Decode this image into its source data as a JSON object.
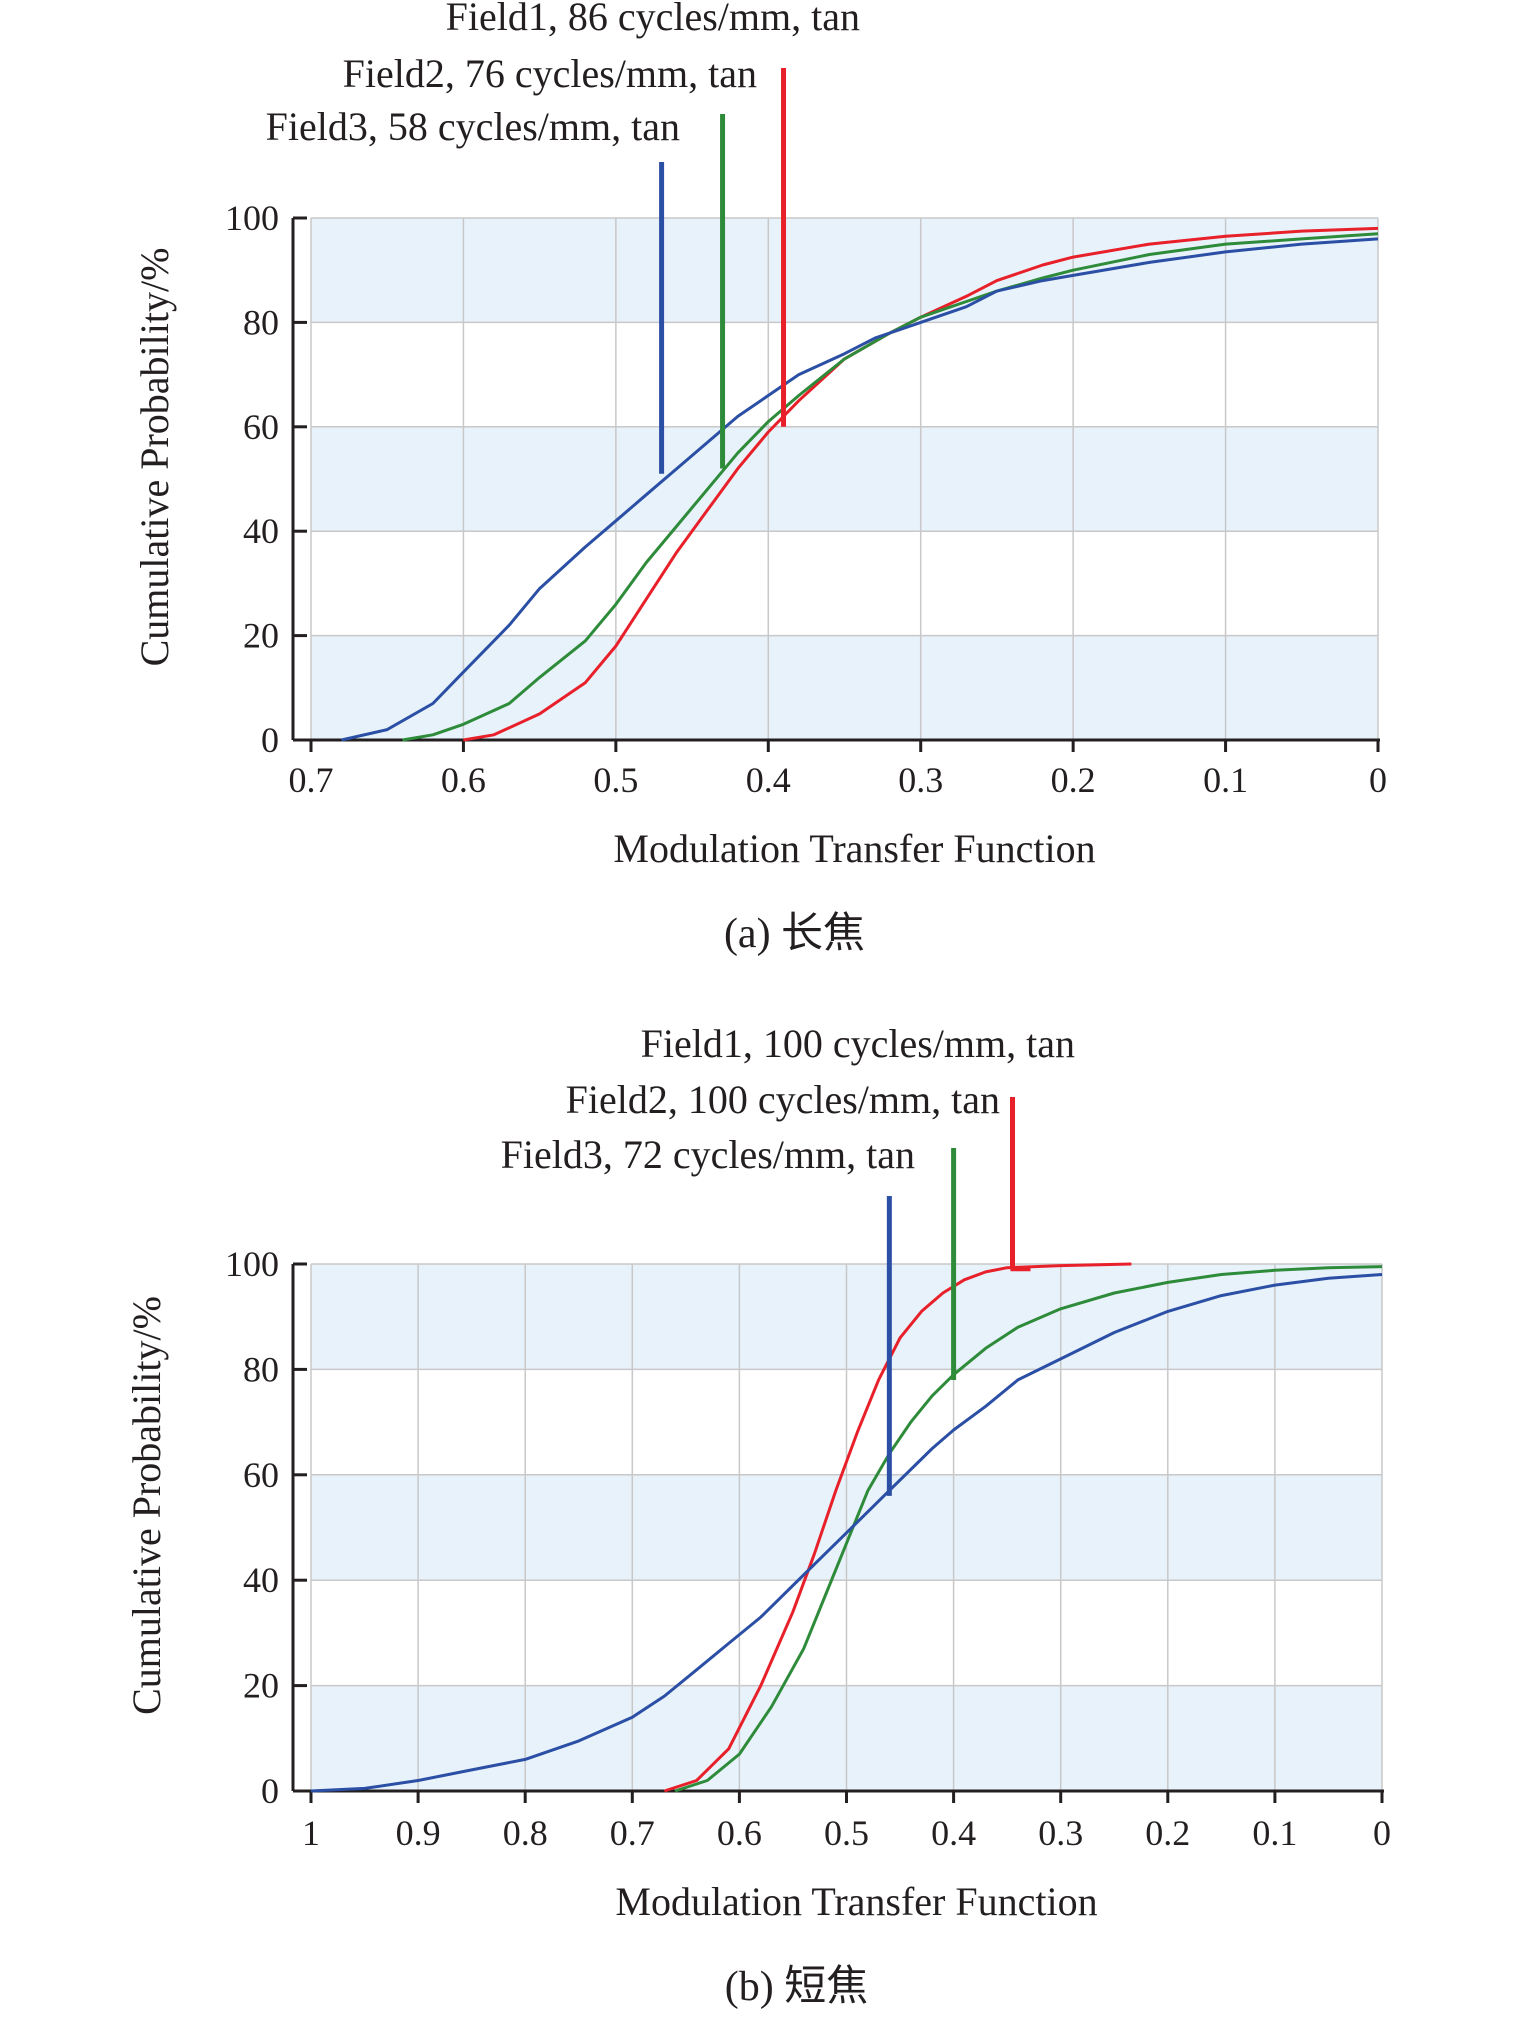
{
  "chart_data": [
    {
      "type": "line",
      "caption": "(a) 长焦",
      "xlabel": "Modulation Transfer Function",
      "ylabel": "Cumulative Probability/%",
      "xlim": [
        0.7,
        0
      ],
      "x_reversed": true,
      "ylim": [
        0,
        100
      ],
      "xticks": [
        "0.7",
        "0.6",
        "0.5",
        "0.4",
        "0.3",
        "0.2",
        "0.1",
        "0"
      ],
      "yticks": [
        "0",
        "20",
        "40",
        "60",
        "80",
        "100"
      ],
      "grid": true,
      "band_color": "#e8f2fb",
      "annotations": [
        {
          "label": "Field1, 86 cycles/mm, tan",
          "x": 0.39,
          "y": 60,
          "color": "#e8202a"
        },
        {
          "label": "Field2, 76 cycles/mm, tan",
          "x": 0.43,
          "y": 52,
          "color": "#2e8b3a"
        },
        {
          "label": "Field3, 58 cycles/mm, tan",
          "x": 0.47,
          "y": 51,
          "color": "#2b4fa5"
        }
      ],
      "series": [
        {
          "color": "#e8202a",
          "points": [
            [
              0.6,
              0
            ],
            [
              0.58,
              1
            ],
            [
              0.55,
              5
            ],
            [
              0.52,
              11
            ],
            [
              0.5,
              18
            ],
            [
              0.48,
              27
            ],
            [
              0.46,
              36
            ],
            [
              0.44,
              44
            ],
            [
              0.42,
              52
            ],
            [
              0.4,
              59
            ],
            [
              0.38,
              65
            ],
            [
              0.35,
              73
            ],
            [
              0.32,
              78
            ],
            [
              0.3,
              81
            ],
            [
              0.27,
              85
            ],
            [
              0.25,
              88
            ],
            [
              0.22,
              91
            ],
            [
              0.2,
              92.5
            ],
            [
              0.15,
              95
            ],
            [
              0.1,
              96.5
            ],
            [
              0.05,
              97.5
            ],
            [
              0,
              98
            ]
          ]
        },
        {
          "color": "#2e8b3a",
          "points": [
            [
              0.64,
              0
            ],
            [
              0.62,
              1
            ],
            [
              0.6,
              3
            ],
            [
              0.57,
              7
            ],
            [
              0.55,
              12
            ],
            [
              0.52,
              19
            ],
            [
              0.5,
              26
            ],
            [
              0.48,
              34
            ],
            [
              0.46,
              41
            ],
            [
              0.44,
              48
            ],
            [
              0.42,
              55
            ],
            [
              0.4,
              61
            ],
            [
              0.38,
              66
            ],
            [
              0.35,
              73
            ],
            [
              0.32,
              78
            ],
            [
              0.3,
              81
            ],
            [
              0.27,
              84
            ],
            [
              0.25,
              86
            ],
            [
              0.22,
              88.5
            ],
            [
              0.2,
              90
            ],
            [
              0.15,
              93
            ],
            [
              0.1,
              95
            ],
            [
              0.05,
              96
            ],
            [
              0,
              97
            ]
          ]
        },
        {
          "color": "#2b4fa5",
          "points": [
            [
              0.68,
              0
            ],
            [
              0.65,
              2
            ],
            [
              0.62,
              7
            ],
            [
              0.6,
              13
            ],
            [
              0.57,
              22
            ],
            [
              0.55,
              29
            ],
            [
              0.52,
              37
            ],
            [
              0.5,
              42
            ],
            [
              0.48,
              47
            ],
            [
              0.46,
              52
            ],
            [
              0.44,
              57
            ],
            [
              0.42,
              62
            ],
            [
              0.4,
              66
            ],
            [
              0.38,
              70
            ],
            [
              0.35,
              74
            ],
            [
              0.33,
              77
            ],
            [
              0.3,
              80
            ],
            [
              0.27,
              83
            ],
            [
              0.25,
              86
            ],
            [
              0.22,
              88
            ],
            [
              0.2,
              89
            ],
            [
              0.15,
              91.5
            ],
            [
              0.1,
              93.5
            ],
            [
              0.05,
              95
            ],
            [
              0,
              96
            ]
          ]
        }
      ]
    },
    {
      "type": "line",
      "caption": "(b) 短焦",
      "xlabel": "Modulation Transfer Function",
      "ylabel": "Cumulative Probability/%",
      "xlim": [
        1,
        0
      ],
      "x_reversed": true,
      "ylim": [
        0,
        100
      ],
      "xticks": [
        "1",
        "0.9",
        "0.8",
        "0.7",
        "0.6",
        "0.5",
        "0.4",
        "0.3",
        "0.2",
        "0.1",
        "0"
      ],
      "yticks": [
        "0",
        "20",
        "40",
        "60",
        "80",
        "100"
      ],
      "grid": true,
      "band_color": "#e8f2fb",
      "annotations": [
        {
          "label": "Field1, 100 cycles/mm, tan",
          "x": 0.345,
          "y": 99,
          "color": "#e8202a"
        },
        {
          "label": "Field2, 100 cycles/mm, tan",
          "x": 0.4,
          "y": 78,
          "color": "#2e8b3a"
        },
        {
          "label": "Field3, 72 cycles/mm, tan",
          "x": 0.46,
          "y": 56,
          "color": "#2b4fa5"
        }
      ],
      "series": [
        {
          "color": "#e8202a",
          "points": [
            [
              0.67,
              0
            ],
            [
              0.64,
              2
            ],
            [
              0.61,
              8
            ],
            [
              0.58,
              20
            ],
            [
              0.55,
              34
            ],
            [
              0.53,
              45
            ],
            [
              0.51,
              57
            ],
            [
              0.49,
              68
            ],
            [
              0.47,
              78
            ],
            [
              0.45,
              86
            ],
            [
              0.43,
              91
            ],
            [
              0.41,
              94.5
            ],
            [
              0.39,
              97
            ],
            [
              0.37,
              98.5
            ],
            [
              0.35,
              99.3
            ],
            [
              0.3,
              99.7
            ],
            [
              0.234,
              100
            ]
          ]
        },
        {
          "color": "#2e8b3a",
          "points": [
            [
              0.66,
              0
            ],
            [
              0.63,
              2
            ],
            [
              0.6,
              7
            ],
            [
              0.57,
              16
            ],
            [
              0.54,
              27
            ],
            [
              0.52,
              37
            ],
            [
              0.5,
              47
            ],
            [
              0.48,
              57
            ],
            [
              0.46,
              64
            ],
            [
              0.44,
              70
            ],
            [
              0.42,
              75
            ],
            [
              0.4,
              79
            ],
            [
              0.37,
              84
            ],
            [
              0.34,
              88
            ],
            [
              0.3,
              91.5
            ],
            [
              0.25,
              94.5
            ],
            [
              0.2,
              96.5
            ],
            [
              0.15,
              98
            ],
            [
              0.1,
              98.8
            ],
            [
              0.05,
              99.3
            ],
            [
              0,
              99.5
            ]
          ]
        },
        {
          "color": "#2b4fa5",
          "points": [
            [
              1.0,
              0
            ],
            [
              0.95,
              0.5
            ],
            [
              0.9,
              2
            ],
            [
              0.85,
              4
            ],
            [
              0.8,
              6
            ],
            [
              0.75,
              9.5
            ],
            [
              0.7,
              14
            ],
            [
              0.67,
              18
            ],
            [
              0.64,
              23
            ],
            [
              0.61,
              28
            ],
            [
              0.58,
              33
            ],
            [
              0.55,
              39
            ],
            [
              0.52,
              45
            ],
            [
              0.5,
              49
            ],
            [
              0.48,
              53
            ],
            [
              0.46,
              57
            ],
            [
              0.44,
              61
            ],
            [
              0.42,
              65
            ],
            [
              0.4,
              68.5
            ],
            [
              0.37,
              73
            ],
            [
              0.34,
              78
            ],
            [
              0.3,
              82
            ],
            [
              0.25,
              87
            ],
            [
              0.2,
              91
            ],
            [
              0.15,
              94
            ],
            [
              0.1,
              96
            ],
            [
              0.05,
              97.3
            ],
            [
              0,
              98
            ]
          ]
        }
      ]
    }
  ]
}
